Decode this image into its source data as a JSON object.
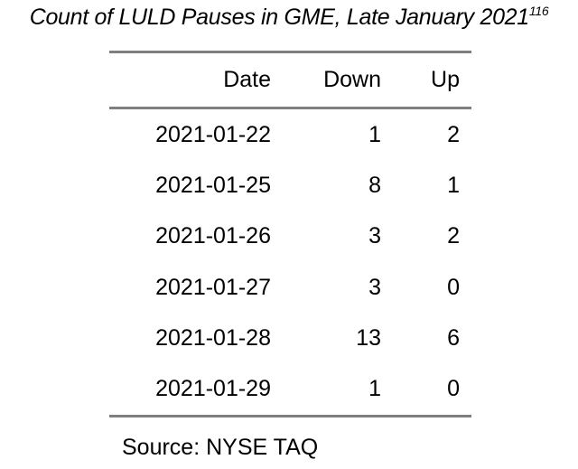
{
  "title": {
    "text": "Count of LULD Pauses in GME, Late January 2021",
    "footnote": "116"
  },
  "table": {
    "columns": [
      "Date",
      "Down",
      "Up"
    ],
    "rows": [
      {
        "date": "2021-01-22",
        "down": "1",
        "up": "2"
      },
      {
        "date": "2021-01-25",
        "down": "8",
        "up": "1"
      },
      {
        "date": "2021-01-26",
        "down": "3",
        "up": "2"
      },
      {
        "date": "2021-01-27",
        "down": "3",
        "up": "0"
      },
      {
        "date": "2021-01-28",
        "down": "13",
        "up": "6"
      },
      {
        "date": "2021-01-29",
        "down": "1",
        "up": "0"
      }
    ]
  },
  "source": "Source: NYSE TAQ",
  "colors": {
    "rule": "#7f7f7f",
    "text": "#000000",
    "background": "#ffffff"
  }
}
